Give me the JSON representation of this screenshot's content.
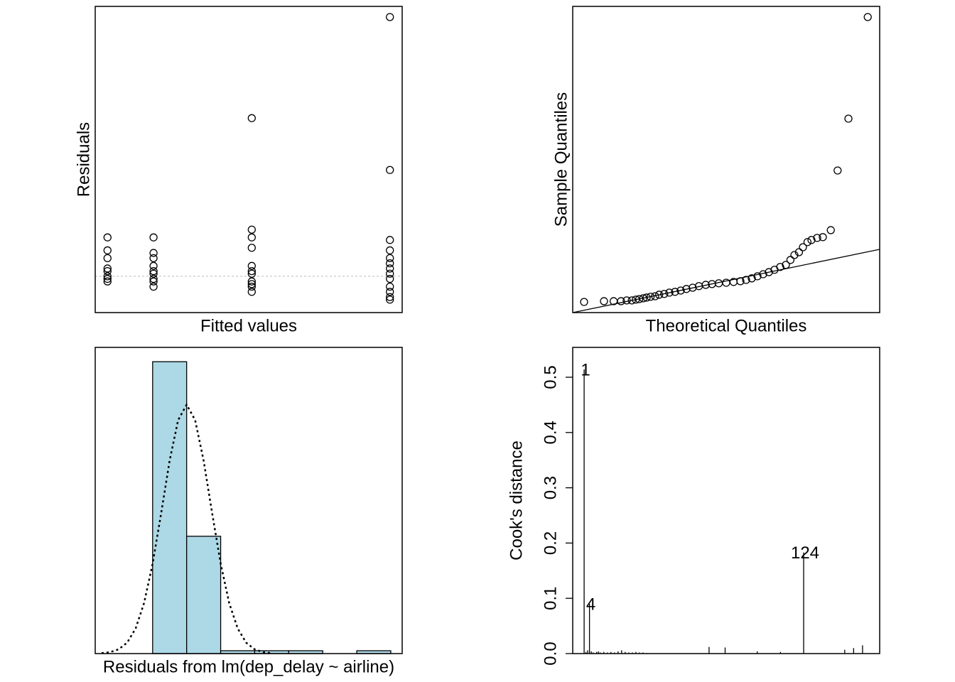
{
  "chart_data": [
    {
      "type": "scatter",
      "xlabel": "Fitted values",
      "ylabel": "Residuals",
      "xlim": [
        0,
        100
      ],
      "ylim": [
        -14,
        104.1
      ],
      "hline": 0,
      "x": [
        4,
        4,
        4,
        4,
        4,
        4,
        4,
        4,
        19,
        19,
        19,
        19,
        19,
        19,
        19,
        19,
        19,
        51,
        51,
        51,
        51,
        51,
        51,
        51,
        51,
        51,
        51,
        51,
        96,
        96,
        96,
        96,
        96,
        96,
        96,
        96,
        96,
        96,
        96,
        96,
        96
      ],
      "y": [
        15,
        10,
        7,
        3,
        2,
        0,
        -1,
        -2,
        15,
        9,
        7,
        4,
        2,
        1,
        -1,
        -2,
        -4,
        61,
        18,
        15,
        11,
        4,
        2,
        1,
        -2,
        -3,
        -4,
        -6,
        100,
        41,
        14,
        10,
        7,
        5,
        3,
        1,
        -1,
        -4,
        -6,
        -8,
        -9
      ]
    },
    {
      "type": "scatter",
      "xlabel": "Theoretical Quantiles",
      "ylabel": "Sample Quantiles",
      "xlim": [
        -2.7,
        2.7
      ],
      "ylim": [
        -14,
        104.1
      ],
      "line": {
        "x": [
          -2.7,
          2.7
        ],
        "y": [
          -14,
          10.4
        ]
      },
      "x": [
        -2.5,
        -2.15,
        -1.98,
        -1.85,
        -1.75,
        -1.66,
        -1.59,
        -1.53,
        -1.46,
        -1.4,
        -1.33,
        -1.25,
        -1.18,
        -1.09,
        -1.0,
        -0.9,
        -0.8,
        -0.7,
        -0.59,
        -0.48,
        -0.36,
        -0.25,
        -0.13,
        0,
        0.13,
        0.25,
        0.35,
        0.45,
        0.55,
        0.65,
        0.75,
        0.85,
        0.95,
        1.05,
        1.13,
        1.2,
        1.28,
        1.35,
        1.43,
        1.5,
        1.6,
        1.7,
        1.84,
        1.96,
        2.15,
        2.49
      ],
      "y": [
        -9.9,
        -9.6,
        -9.6,
        -9.6,
        -9.3,
        -9.3,
        -9.0,
        -8.8,
        -8.5,
        -8.2,
        -7.9,
        -7.7,
        -7.1,
        -6.8,
        -6.3,
        -6.0,
        -5.5,
        -4.9,
        -4.4,
        -3.8,
        -3.3,
        -3.0,
        -2.7,
        -2.5,
        -2.2,
        -1.9,
        -1.4,
        -0.8,
        0,
        0.8,
        1.6,
        2.5,
        3.6,
        4.4,
        6.3,
        8.2,
        9.3,
        11.2,
        13.2,
        14.0,
        14.8,
        15.1,
        17.8,
        40.8,
        60.8,
        100
      ]
    },
    {
      "type": "histogram",
      "xlabel": "Residuals from lm(dep_delay ~ airline)",
      "color": "#add8e6",
      "xlim": [
        -53.75,
        126.7
      ],
      "ylim": [
        0,
        107
      ],
      "bins": [
        -20,
        0,
        20,
        40,
        60,
        80,
        100,
        120
      ],
      "counts": [
        102,
        41,
        1,
        1,
        1,
        0,
        1
      ],
      "curve": {
        "x": [
          -50,
          -45,
          -40,
          -35,
          -30,
          -25,
          -20,
          -15,
          -10,
          -5,
          0,
          5,
          10,
          15,
          20,
          25,
          30,
          35,
          40,
          45,
          50
        ],
        "y": [
          0.15,
          0.5,
          1.5,
          3.8,
          8.8,
          17.7,
          31.4,
          49.0,
          67.4,
          81.6,
          87,
          81.6,
          67.4,
          49.0,
          31.4,
          17.7,
          8.8,
          3.8,
          1.5,
          0.5,
          0.15
        ]
      }
    },
    {
      "type": "spike",
      "ylabel": "Cook's distance",
      "xlim": [
        -5.4,
        166.6
      ],
      "ylim": [
        0,
        0.554
      ],
      "yticks": [
        {
          "value": 0,
          "label": "0.0"
        },
        0.1,
        0.2,
        0.3,
        0.4,
        0.5
      ],
      "x": [
        1,
        2,
        3,
        4,
        5,
        6,
        8,
        9,
        10,
        12,
        14,
        16,
        18,
        20,
        22,
        24,
        26,
        28,
        30,
        32,
        34,
        36,
        71,
        80,
        98,
        111,
        124,
        147,
        152,
        157
      ],
      "values": [
        0.514,
        0.003,
        0.006,
        0.09,
        0.004,
        0.002,
        0.003,
        0.004,
        0.002,
        0.003,
        0.002,
        0.003,
        0.002,
        0.004,
        0.006,
        0.003,
        0.002,
        0.002,
        0.003,
        0.002,
        0.002,
        0.001,
        0.012,
        0.011,
        0.004,
        0.003,
        0.183,
        0.007,
        0.01,
        0.015
      ],
      "point_labels": [
        "1",
        null,
        null,
        "4",
        null,
        null,
        null,
        null,
        null,
        null,
        null,
        null,
        null,
        null,
        null,
        null,
        null,
        null,
        null,
        null,
        null,
        null,
        null,
        null,
        null,
        null,
        "124",
        null,
        null,
        null
      ]
    }
  ]
}
